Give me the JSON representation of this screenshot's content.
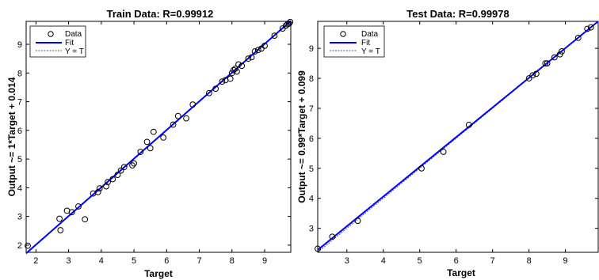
{
  "chart_data": [
    {
      "type": "scatter",
      "title": "Train Data: R=0.99912",
      "xlabel": "Target",
      "ylabel": "Output ~= 1*Target + 0.014",
      "xlim": [
        1.7,
        9.8
      ],
      "ylim": [
        1.75,
        9.8
      ],
      "xticks": [
        2,
        3,
        4,
        5,
        6,
        7,
        8,
        9
      ],
      "yticks": [
        2,
        3,
        4,
        5,
        6,
        7,
        8,
        9
      ],
      "grid": false,
      "legend": {
        "position": "top-left",
        "entries": [
          "Data",
          "Fit",
          "Y = T"
        ]
      },
      "fit": {
        "slope": 1.0,
        "intercept": 0.014,
        "color": "#0000ff"
      },
      "identity_line_color": "#555555",
      "series": [
        {
          "name": "Data",
          "marker": "circle",
          "points": [
            [
              1.75,
              1.98
            ],
            [
              2.72,
              2.92
            ],
            [
              2.75,
              2.52
            ],
            [
              2.95,
              3.2
            ],
            [
              3.1,
              3.15
            ],
            [
              3.3,
              3.35
            ],
            [
              3.5,
              2.9
            ],
            [
              3.75,
              3.8
            ],
            [
              3.9,
              3.85
            ],
            [
              3.95,
              3.98
            ],
            [
              4.15,
              4.05
            ],
            [
              4.2,
              4.2
            ],
            [
              4.35,
              4.3
            ],
            [
              4.5,
              4.45
            ],
            [
              4.6,
              4.6
            ],
            [
              4.7,
              4.72
            ],
            [
              4.95,
              4.78
            ],
            [
              5.0,
              4.85
            ],
            [
              5.2,
              5.25
            ],
            [
              5.4,
              5.6
            ],
            [
              5.5,
              5.38
            ],
            [
              5.6,
              5.95
            ],
            [
              5.9,
              5.75
            ],
            [
              6.2,
              6.2
            ],
            [
              6.35,
              6.5
            ],
            [
              6.6,
              6.42
            ],
            [
              6.8,
              6.9
            ],
            [
              7.3,
              7.3
            ],
            [
              7.5,
              7.45
            ],
            [
              7.7,
              7.7
            ],
            [
              7.8,
              7.75
            ],
            [
              7.95,
              7.8
            ],
            [
              8.0,
              8.0
            ],
            [
              8.05,
              8.1
            ],
            [
              8.1,
              8.15
            ],
            [
              8.15,
              8.05
            ],
            [
              8.2,
              8.3
            ],
            [
              8.3,
              8.25
            ],
            [
              8.5,
              8.5
            ],
            [
              8.6,
              8.55
            ],
            [
              8.7,
              8.75
            ],
            [
              8.8,
              8.8
            ],
            [
              8.9,
              8.85
            ],
            [
              9.0,
              8.95
            ],
            [
              9.3,
              9.3
            ],
            [
              9.55,
              9.55
            ],
            [
              9.65,
              9.65
            ],
            [
              9.7,
              9.7
            ],
            [
              9.75,
              9.72
            ],
            [
              9.78,
              9.78
            ]
          ]
        }
      ]
    },
    {
      "type": "scatter",
      "title": "Test Data: R=0.99978",
      "xlabel": "Target",
      "ylabel": "Output ~= 0.99*Target + 0.099",
      "xlim": [
        2.2,
        9.9
      ],
      "ylim": [
        2.2,
        9.9
      ],
      "xticks": [
        3,
        4,
        5,
        6,
        7,
        8,
        9
      ],
      "yticks": [
        3,
        4,
        5,
        6,
        7,
        8,
        9
      ],
      "grid": false,
      "legend": {
        "position": "top-left",
        "entries": [
          "Data",
          "Fit",
          "Y = T"
        ]
      },
      "fit": {
        "slope": 0.99,
        "intercept": 0.099,
        "color": "#0000ff"
      },
      "identity_line_color": "#555555",
      "series": [
        {
          "name": "Data",
          "marker": "circle",
          "points": [
            [
              2.2,
              2.32
            ],
            [
              2.6,
              2.72
            ],
            [
              3.3,
              3.25
            ],
            [
              5.05,
              5.0
            ],
            [
              5.65,
              5.55
            ],
            [
              6.35,
              6.45
            ],
            [
              8.0,
              8.0
            ],
            [
              8.1,
              8.1
            ],
            [
              8.2,
              8.15
            ],
            [
              8.45,
              8.5
            ],
            [
              8.5,
              8.5
            ],
            [
              8.7,
              8.7
            ],
            [
              8.85,
              8.8
            ],
            [
              8.9,
              8.9
            ],
            [
              9.35,
              9.35
            ],
            [
              9.6,
              9.65
            ],
            [
              9.7,
              9.7
            ]
          ]
        }
      ]
    }
  ]
}
